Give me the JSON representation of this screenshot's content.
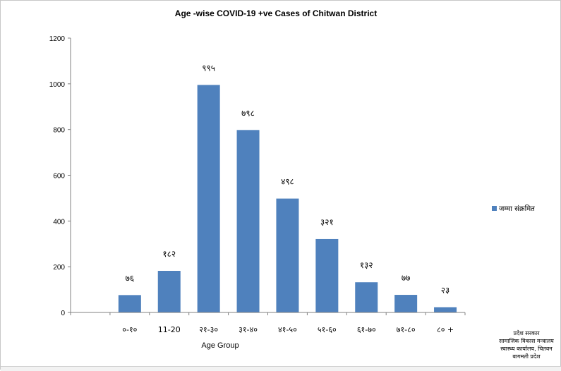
{
  "chart_data": {
    "type": "bar",
    "title": "Age -wise COVID-19 +ve Cases of Chitwan District",
    "xlabel": "Age Group",
    "ylabel": "",
    "ylim": [
      0,
      1200
    ],
    "yticks": [
      "0",
      "200",
      "400",
      "600",
      "800",
      "1000",
      "1200"
    ],
    "categories": [
      "०-१०",
      "11-20",
      "२१-३०",
      "३१-४०",
      "४१-५०",
      "५१-६०",
      "६१-७०",
      "७१-८०",
      "८० +"
    ],
    "series": [
      {
        "name": "जम्मा संक्रमित",
        "values": [
          76,
          182,
          995,
          798,
          498,
          321,
          132,
          77,
          23
        ],
        "data_labels": [
          "७६",
          "१८२",
          "९९५",
          "७९८",
          "४९८",
          "३२१",
          "१३२",
          "७७",
          "२३"
        ]
      }
    ],
    "grid": false,
    "legend_position": "right",
    "bar_color": "#4f81bd"
  },
  "footer": {
    "lines": [
      "प्रदेश सरकार",
      "सामाजिक विकास मन्त्रालय",
      "स्वास्थ्य कार्यालय, चितवन",
      "बागमती प्रदेश"
    ]
  }
}
